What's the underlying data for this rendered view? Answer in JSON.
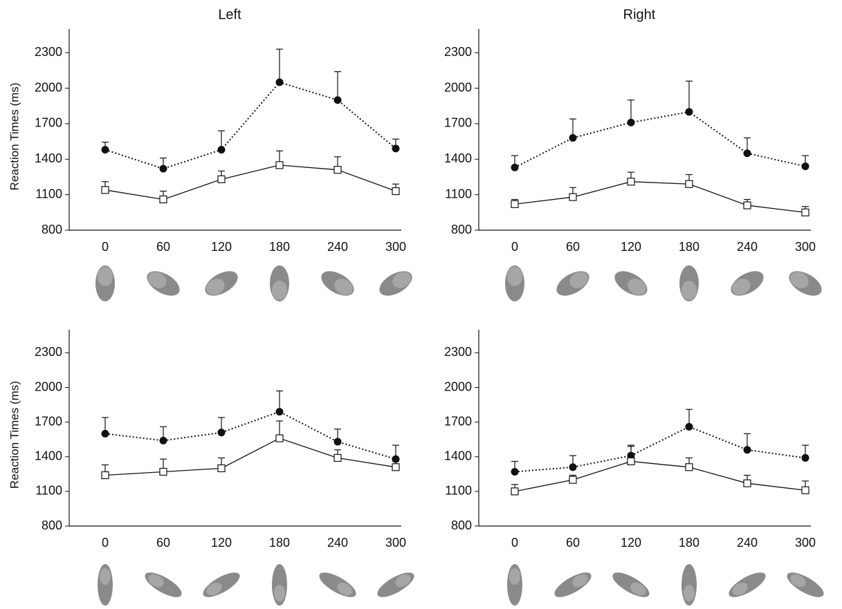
{
  "chart_data": [
    {
      "type": "line",
      "title": "Left",
      "ylabel": "Reaction Times (ms)",
      "categories": [
        "0",
        "60",
        "120",
        "180",
        "240",
        "300"
      ],
      "ylim": [
        800,
        2500
      ],
      "yticks": [
        800,
        1100,
        1400,
        1700,
        2000,
        2300
      ],
      "series": [
        {
          "color": "#111111",
          "marker": "circle",
          "linestyle": "dotted",
          "values": [
            1480,
            1320,
            1480,
            2050,
            1900,
            1490
          ],
          "errors": [
            64,
            90,
            160,
            280,
            240,
            80
          ]
        },
        {
          "color": "#ffffff",
          "marker": "square",
          "linestyle": "solid",
          "values": [
            1140,
            1060,
            1230,
            1350,
            1310,
            1130
          ],
          "errors": [
            70,
            70,
            70,
            120,
            110,
            60
          ]
        }
      ]
    },
    {
      "type": "line",
      "title": "Right",
      "categories": [
        "0",
        "60",
        "120",
        "180",
        "240",
        "300"
      ],
      "ylim": [
        800,
        2500
      ],
      "yticks": [
        800,
        1100,
        1400,
        1700,
        2000,
        2300
      ],
      "series": [
        {
          "color": "#111111",
          "marker": "circle",
          "linestyle": "dotted",
          "values": [
            1330,
            1580,
            1710,
            1800,
            1450,
            1340
          ],
          "errors": [
            100,
            160,
            190,
            260,
            130,
            90
          ]
        },
        {
          "color": "#ffffff",
          "marker": "square",
          "linestyle": "solid",
          "values": [
            1020,
            1080,
            1210,
            1190,
            1010,
            950
          ],
          "errors": [
            40,
            80,
            80,
            80,
            50,
            50
          ]
        }
      ]
    },
    {
      "type": "line",
      "ylabel": "Reaction Times (ms)",
      "categories": [
        "0",
        "60",
        "120",
        "180",
        "240",
        "300"
      ],
      "ylim": [
        800,
        2500
      ],
      "yticks": [
        800,
        1100,
        1400,
        1700,
        2000,
        2300
      ],
      "series": [
        {
          "color": "#111111",
          "marker": "circle",
          "linestyle": "dotted",
          "values": [
            1600,
            1540,
            1610,
            1790,
            1530,
            1380
          ],
          "errors": [
            140,
            120,
            130,
            180,
            110,
            120
          ]
        },
        {
          "color": "#ffffff",
          "marker": "square",
          "linestyle": "solid",
          "values": [
            1240,
            1270,
            1300,
            1560,
            1390,
            1310
          ],
          "errors": [
            90,
            110,
            90,
            150,
            70,
            50
          ]
        }
      ]
    },
    {
      "type": "line",
      "categories": [
        "0",
        "60",
        "120",
        "180",
        "240",
        "300"
      ],
      "ylim": [
        800,
        2500
      ],
      "yticks": [
        800,
        1100,
        1400,
        1700,
        2000,
        2300
      ],
      "series": [
        {
          "color": "#111111",
          "marker": "circle",
          "linestyle": "dotted",
          "values": [
            1270,
            1310,
            1410,
            1660,
            1460,
            1390
          ],
          "errors": [
            90,
            100,
            90,
            150,
            140,
            110
          ]
        },
        {
          "color": "#ffffff",
          "marker": "square",
          "linestyle": "solid",
          "values": [
            1100,
            1200,
            1360,
            1310,
            1170,
            1110
          ],
          "errors": [
            60,
            40,
            130,
            80,
            70,
            80
          ]
        }
      ]
    }
  ]
}
